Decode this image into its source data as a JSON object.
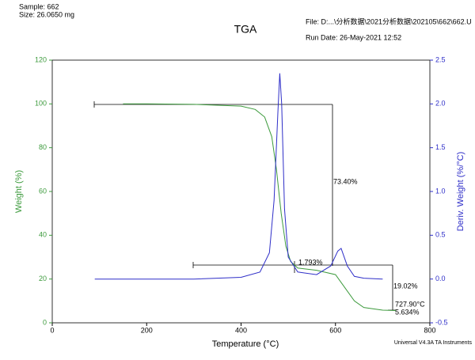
{
  "header": {
    "sample": "Sample: 662",
    "size": "Size:  26.0650 mg",
    "file": "File: D:...\\分析数据\\2021分析数据\\202105\\662\\662.U",
    "run_date": "Run Date: 26-May-2021 12:52",
    "footer": "Universal V4.3A TA Instruments"
  },
  "chart_data": {
    "type": "line",
    "title": "TGA",
    "x_label": "Temperature (°C)",
    "y_label": "Weight (%)",
    "y2_label": "Deriv. Weight (%/°C)",
    "xlim": [
      0,
      800
    ],
    "xticks": [
      0,
      200,
      400,
      600,
      800
    ],
    "ylim": [
      0,
      120
    ],
    "yticks": [
      0,
      20,
      40,
      60,
      80,
      100,
      120
    ],
    "y2lim": [
      -0.5,
      2.5
    ],
    "y2ticks": [
      -0.5,
      {
        "value": 0,
        "label": "0.0"
      },
      0.5,
      {
        "value": 1,
        "label": "1.0"
      },
      1.5,
      {
        "value": 2,
        "label": "2.0"
      },
      2.5
    ],
    "series": [
      {
        "color": "#3c9a3c",
        "x": [
          150,
          200,
          300,
          400,
          430,
          450,
          465,
          475,
          485,
          495,
          505,
          520,
          560,
          600,
          620,
          640,
          660,
          700,
          727.9
        ],
        "values": [
          100,
          100,
          99.8,
          99,
          97.5,
          94,
          85,
          70,
          50,
          35,
          28,
          25,
          24,
          22,
          16,
          10,
          7,
          5.8,
          5.6
        ]
      },
      {
        "color": "#2e2ec8",
        "axis": "y2",
        "x": [
          90,
          200,
          300,
          400,
          440,
          460,
          470,
          478,
          482,
          486,
          492,
          500,
          520,
          560,
          590,
          605,
          612,
          625,
          640,
          660,
          700
        ],
        "values": [
          0,
          0,
          0,
          0.02,
          0.08,
          0.3,
          0.9,
          1.9,
          2.35,
          2.0,
          0.8,
          0.25,
          0.08,
          0.05,
          0.15,
          0.32,
          0.35,
          0.15,
          0.03,
          0.01,
          0
        ]
      }
    ],
    "annotations": [
      "73.40%",
      "1.793%",
      "19.02%",
      "727.90°C",
      "5.634%"
    ]
  }
}
